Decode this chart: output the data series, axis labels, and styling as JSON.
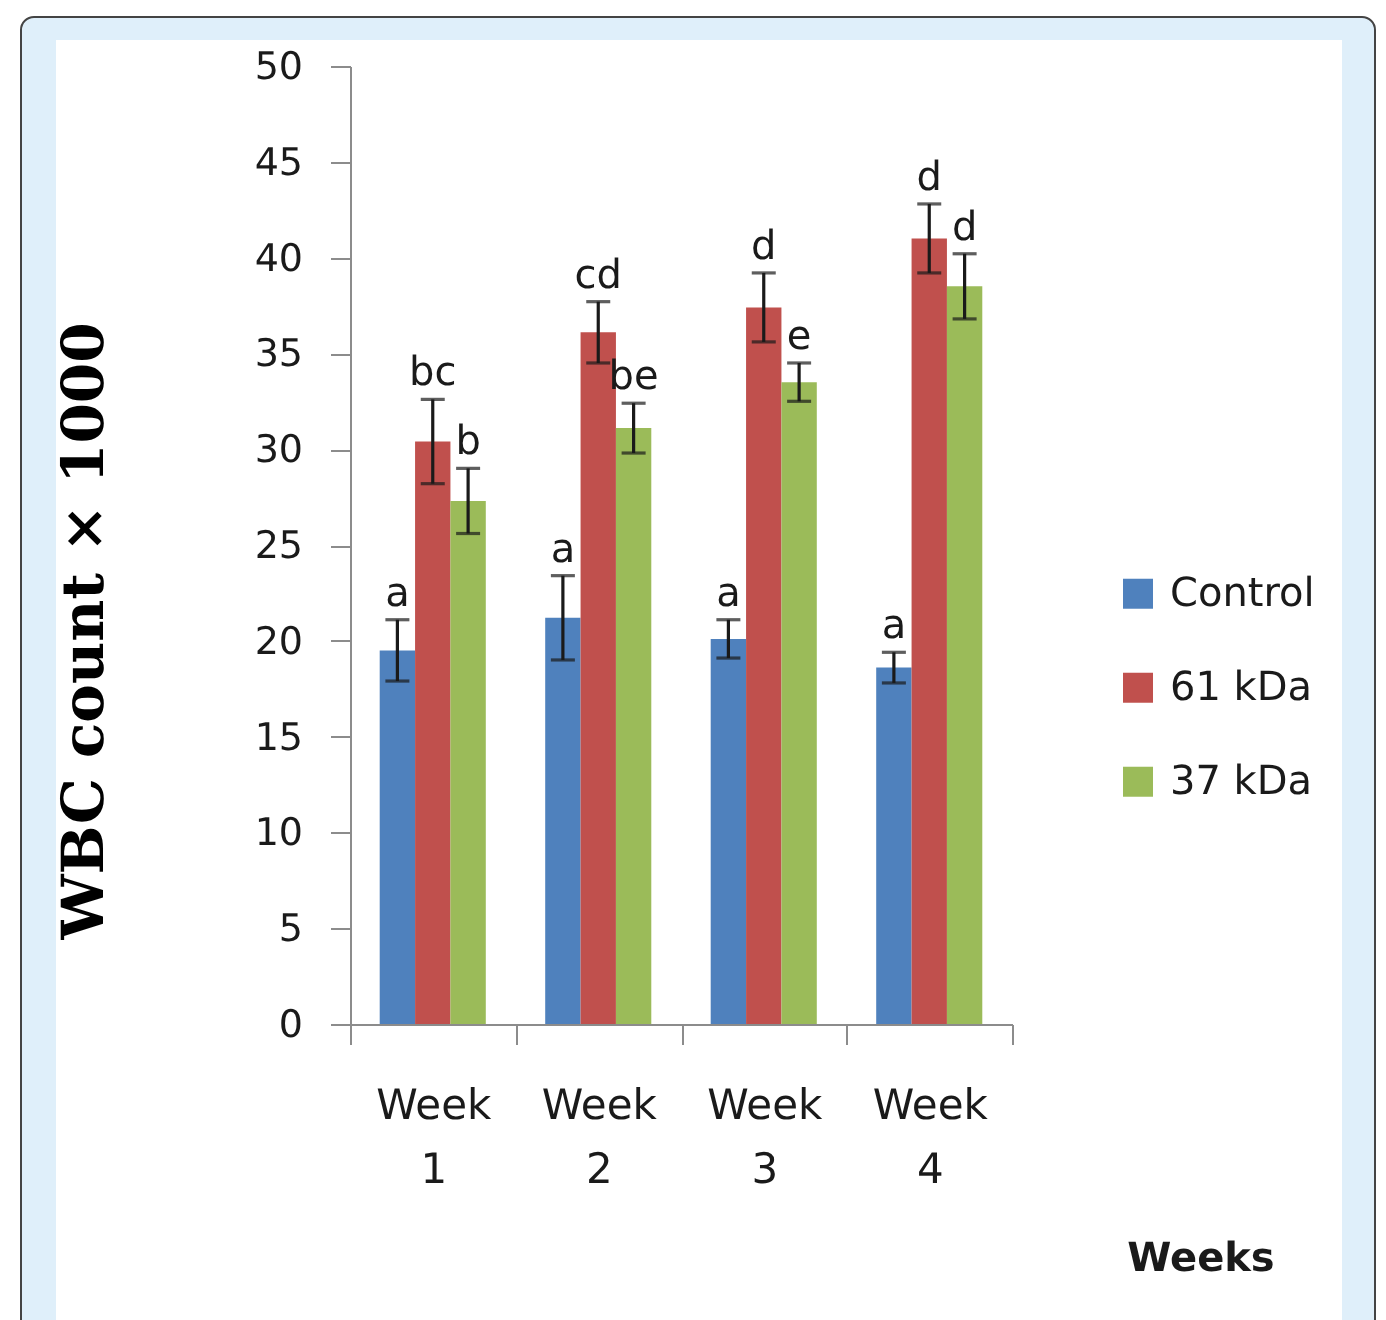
{
  "chart_data": {
    "type": "bar",
    "xlabel": "Weeks",
    "ylabel": "WBC count × 1000",
    "categories": [
      "Week 1",
      "Week 2",
      "Week 3",
      "Week 4"
    ],
    "series": [
      {
        "name": "Control",
        "color": "#4f81bd",
        "values": [
          19.5,
          21.2,
          20.1,
          18.6
        ],
        "errors": [
          1.6,
          2.2,
          1.0,
          0.8
        ],
        "value_labels": [
          "a",
          "a",
          "a",
          "a"
        ]
      },
      {
        "name": "61 kDa",
        "color": "#c0504d",
        "values": [
          30.4,
          36.1,
          37.4,
          41.0
        ],
        "errors": [
          2.2,
          1.6,
          1.8,
          1.8
        ],
        "value_labels": [
          "bc",
          "cd",
          "d",
          "d"
        ]
      },
      {
        "name": "37 kDa",
        "color": "#9bbb59",
        "values": [
          27.3,
          31.1,
          33.5,
          38.5
        ],
        "errors": [
          1.7,
          1.3,
          1.0,
          1.7
        ],
        "value_labels": [
          "b",
          "be",
          "e",
          "d"
        ]
      }
    ],
    "ylim": [
      0,
      50
    ],
    "yticks": [
      0,
      5,
      10,
      15,
      20,
      25,
      30,
      35,
      40,
      45,
      50
    ],
    "grid": false,
    "legend": "right"
  }
}
